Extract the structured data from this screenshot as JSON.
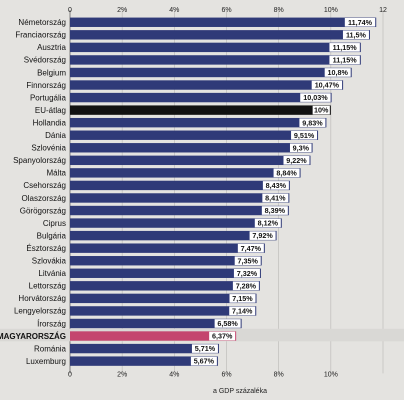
{
  "chart_data": {
    "type": "bar",
    "orientation": "horizontal",
    "categories": [
      "Németország",
      "Franciaország",
      "Ausztria",
      "Svédország",
      "Belgium",
      "Finnország",
      "Portugália",
      "EU-átlag",
      "Hollandia",
      "Dánia",
      "Szlovénia",
      "Spanyolország",
      "Málta",
      "Csehország",
      "Olaszország",
      "Görögország",
      "Ciprus",
      "Bulgária",
      "Észtország",
      "Szlovákia",
      "Litvánia",
      "Lettország",
      "Horvátország",
      "Lengyelország",
      "Írország",
      "MAGYARORSZÁG",
      "Románia",
      "Luxemburg"
    ],
    "values": [
      11.74,
      11.5,
      11.15,
      11.15,
      10.8,
      10.47,
      10.03,
      10,
      9.83,
      9.51,
      9.3,
      9.22,
      8.84,
      8.43,
      8.41,
      8.39,
      8.12,
      7.92,
      7.47,
      7.35,
      7.32,
      7.28,
      7.15,
      7.14,
      6.58,
      6.37,
      5.71,
      5.67
    ],
    "value_labels": [
      "11,74%",
      "11,5%",
      "11,15%",
      "11,15%",
      "10,8%",
      "10,47%",
      "10,03%",
      "10%",
      "9,83%",
      "9,51%",
      "9,3%",
      "9,22%",
      "8,84%",
      "8,43%",
      "8,41%",
      "8,39%",
      "8,12%",
      "7,92%",
      "7,47%",
      "7,35%",
      "7,32%",
      "7,28%",
      "7,15%",
      "7,14%",
      "6,58%",
      "6,37%",
      "5,71%",
      "5,67%"
    ],
    "highlight": {
      "EU-átlag": "#111111",
      "MAGYARORSZÁG": "#c4456e"
    },
    "bar_color": "#2f3a78",
    "xlabel": "a GDP százaléka",
    "xlim": [
      0,
      12
    ],
    "xticks": [
      0,
      2,
      4,
      6,
      8,
      10,
      12
    ],
    "xtick_labels_top": [
      "0",
      "2%",
      "4%",
      "6%",
      "8%",
      "10%",
      "12"
    ],
    "xtick_labels_bottom": [
      "0",
      "2%",
      "4%",
      "6%",
      "8%",
      "10%",
      ""
    ],
    "grid": true
  }
}
